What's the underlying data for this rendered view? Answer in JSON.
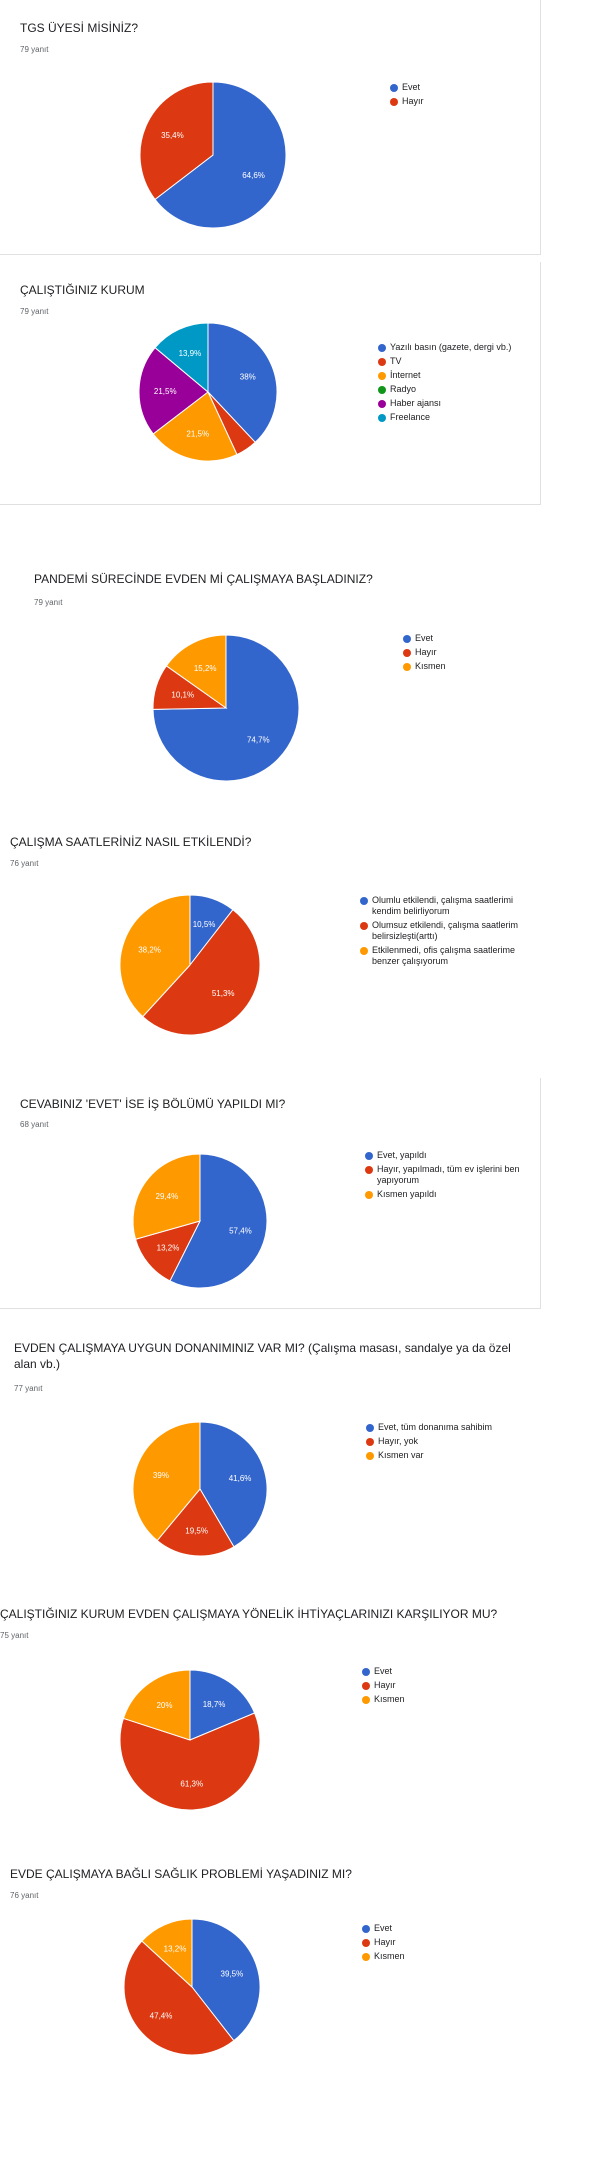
{
  "charts": [
    {
      "title": "TGS ÜYESİ MİSİNİZ?",
      "count": "79 yanıt",
      "chart_data": {
        "type": "pie",
        "categories": [
          "Evet",
          "Hayır"
        ],
        "values": [
          64.6,
          35.4
        ],
        "labels": [
          "64,6%",
          "35,4%"
        ],
        "colors": [
          "#3366cc",
          "#dc3912"
        ],
        "legend_position": "right"
      }
    },
    {
      "title": "ÇALIŞTIĞINIZ KURUM",
      "count": "79 yanıt",
      "chart_data": {
        "type": "pie",
        "categories": [
          "Yazılı basın (gazete, dergi vb.)",
          "TV",
          "İnternet",
          "Radyo",
          "Haber ajansı",
          "Freelance"
        ],
        "values": [
          38,
          5.1,
          21.5,
          0,
          21.5,
          13.9
        ],
        "labels": [
          "38%",
          "",
          "21,5%",
          "",
          "21,5%",
          "13,9%"
        ],
        "colors": [
          "#3366cc",
          "#dc3912",
          "#ff9900",
          "#109618",
          "#990099",
          "#0099c6"
        ],
        "legend_position": "right"
      }
    },
    {
      "title": "PANDEMİ SÜRECİNDE EVDEN Mİ ÇALIŞMAYA BAŞLADINIZ?",
      "count": "79 yanıt",
      "chart_data": {
        "type": "pie",
        "categories": [
          "Evet",
          "Hayır",
          "Kısmen"
        ],
        "values": [
          74.7,
          10.1,
          15.2
        ],
        "labels": [
          "74,7%",
          "10,1%",
          "15,2%"
        ],
        "colors": [
          "#3366cc",
          "#dc3912",
          "#ff9900"
        ],
        "legend_position": "right"
      }
    },
    {
      "title": "ÇALIŞMA SAATLERİNİZ NASIL ETKİLENDİ?",
      "count": "76 yanıt",
      "chart_data": {
        "type": "pie",
        "categories": [
          "Olumlu etkilendi, çalışma saatlerimi kendim belirliyorum",
          "Olumsuz etkilendi, çalışma saatlerim belirsizleşti(arttı)",
          "Etkilenmedi, ofis çalışma saatlerime benzer çalışıyorum"
        ],
        "values": [
          10.5,
          51.3,
          38.2
        ],
        "labels": [
          "10,5%",
          "51,3%",
          "38,2%"
        ],
        "colors": [
          "#3366cc",
          "#dc3912",
          "#ff9900"
        ],
        "legend_position": "right"
      }
    },
    {
      "title": "CEVABINIZ 'EVET' İSE İŞ BÖLÜMÜ YAPILDI MI?",
      "count": "68 yanıt",
      "chart_data": {
        "type": "pie",
        "categories": [
          "Evet, yapıldı",
          "Hayır, yapılmadı, tüm ev işlerini ben yapıyorum",
          "Kısmen yapıldı"
        ],
        "values": [
          57.4,
          13.2,
          29.4
        ],
        "labels": [
          "57,4%",
          "13,2%",
          "29,4%"
        ],
        "colors": [
          "#3366cc",
          "#dc3912",
          "#ff9900"
        ],
        "legend_position": "right"
      }
    },
    {
      "title": "EVDEN ÇALIŞMAYA UYGUN DONANIMINIZ VAR MI? (Çalışma masası, sandalye ya da özel alan vb.)",
      "count": "77 yanıt",
      "chart_data": {
        "type": "pie",
        "categories": [
          "Evet, tüm donanıma sahibim",
          "Hayır, yok",
          "Kısmen var"
        ],
        "values": [
          41.6,
          19.5,
          39
        ],
        "labels": [
          "41,6%",
          "19,5%",
          "39%"
        ],
        "colors": [
          "#3366cc",
          "#dc3912",
          "#ff9900"
        ],
        "legend_position": "right"
      }
    },
    {
      "title": "ÇALIŞTIĞINIZ KURUM EVDEN ÇALIŞMAYA YÖNELİK İHTİYAÇLARINIZI KARŞILIYOR MU?",
      "count": "75 yanıt",
      "chart_data": {
        "type": "pie",
        "categories": [
          "Evet",
          "Hayır",
          "Kısmen"
        ],
        "values": [
          18.7,
          61.3,
          20
        ],
        "labels": [
          "18,7%",
          "61,3%",
          "20%"
        ],
        "colors": [
          "#3366cc",
          "#dc3912",
          "#ff9900"
        ],
        "legend_position": "right"
      }
    },
    {
      "title": "EVDE ÇALIŞMAYA BAĞLI SAĞLIK PROBLEMİ YAŞADINIZ MI?",
      "count": "76 yanıt",
      "chart_data": {
        "type": "pie",
        "categories": [
          "Evet",
          "Hayır",
          "Kısmen"
        ],
        "values": [
          39.5,
          47.4,
          13.2
        ],
        "labels": [
          "39,5%",
          "47,4%",
          "13,2%"
        ],
        "colors": [
          "#3366cc",
          "#dc3912",
          "#ff9900"
        ],
        "legend_position": "right"
      }
    }
  ]
}
